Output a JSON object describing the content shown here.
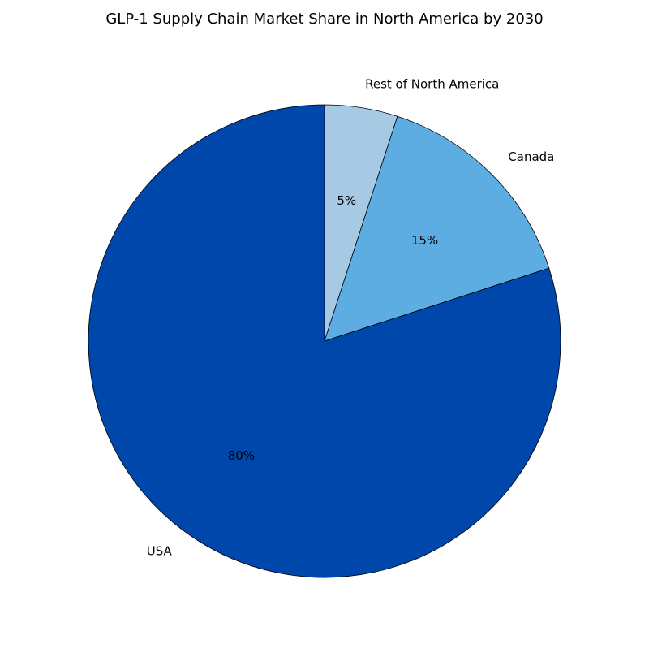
{
  "chart_data": {
    "type": "pie",
    "title": "GLP-1 Supply Chain Market Share in North America by 2030",
    "categories": [
      "Rest of North America",
      "Canada",
      "USA"
    ],
    "values": [
      5,
      15,
      80
    ],
    "value_labels": [
      "5%",
      "15%",
      "80%"
    ],
    "colors": [
      "#a6cae3",
      "#5dade2",
      "#0047ab"
    ],
    "edge_color": "#000000",
    "start_angle_deg": 90,
    "direction": "clockwise",
    "legend": "none"
  }
}
